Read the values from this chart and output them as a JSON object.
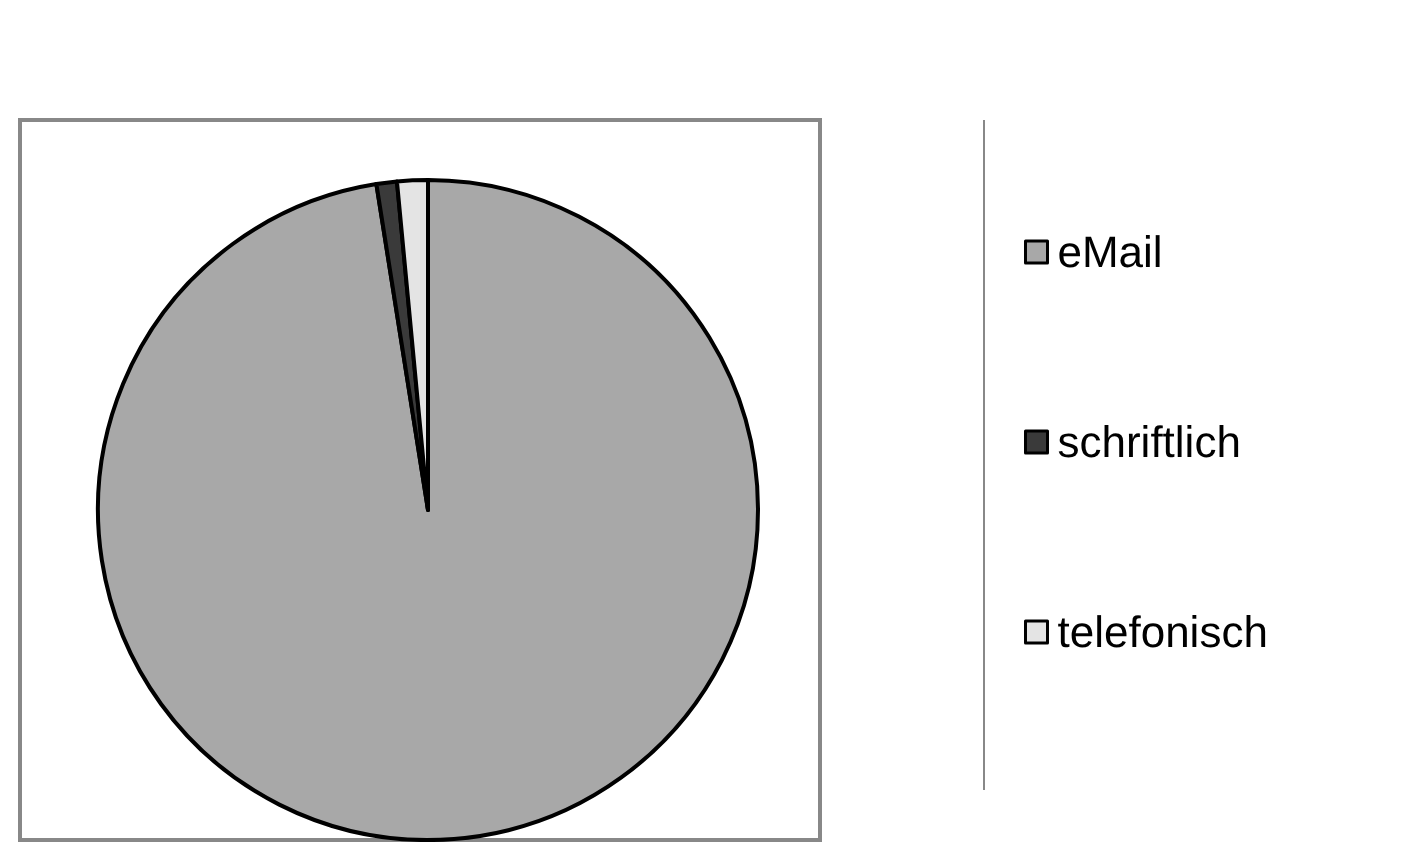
{
  "chart_data": {
    "type": "pie",
    "categories": [
      "eMail",
      "schriftlich",
      "telefonisch"
    ],
    "values": [
      97.5,
      1,
      1.5
    ],
    "colors": [
      "#a8a8a8",
      "#3a3a3a",
      "#e4e4e4"
    ],
    "legend": "right"
  }
}
